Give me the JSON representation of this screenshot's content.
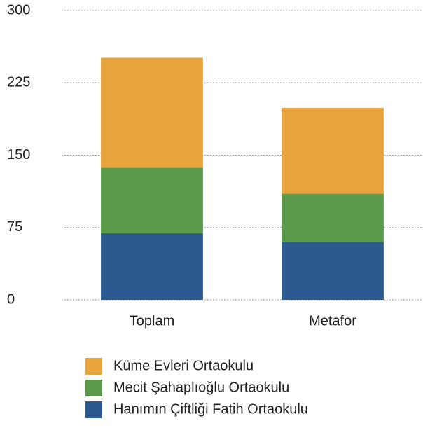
{
  "chart_data": {
    "type": "stacked_bar",
    "categories": [
      "Toplam",
      "Metafor"
    ],
    "series": [
      {
        "name": "Hanımın Çiftliği Fatih Ortaokulu",
        "color": "#2d5a8e",
        "values": [
          69,
          60
        ]
      },
      {
        "name": "Mecit Şahaplıoğlu Ortaokulu",
        "color": "#5b9a4a",
        "values": [
          68,
          50
        ]
      },
      {
        "name": "Küme Evleri Ortaokulu",
        "color": "#e8a43c",
        "values": [
          114,
          89
        ]
      }
    ],
    "ylim": [
      0,
      300
    ],
    "yticks": [
      0,
      75,
      150,
      225,
      300
    ],
    "grid": true
  }
}
